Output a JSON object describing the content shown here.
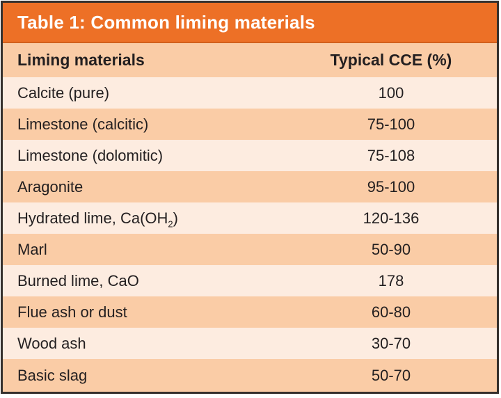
{
  "table": {
    "title": "Table 1: Common liming materials",
    "columns": {
      "material": "Liming materials",
      "cce": "Typical CCE (%)"
    },
    "rows": [
      {
        "material": "Calcite (pure)",
        "cce": "100"
      },
      {
        "material": "Limestone (calcitic)",
        "cce": "75-100"
      },
      {
        "material": "Limestone (dolomitic)",
        "cce": "75-108"
      },
      {
        "material": "Aragonite",
        "cce": "95-100"
      },
      {
        "material": "Hydrated lime, Ca(OH₂)",
        "cce": "120-136"
      },
      {
        "material": "Marl",
        "cce": "50-90"
      },
      {
        "material": "Burned lime, CaO",
        "cce": "178"
      },
      {
        "material": "Flue ash or dust",
        "cce": "60-80"
      },
      {
        "material": "Wood ash",
        "cce": "30-70"
      },
      {
        "material": "Basic slag",
        "cce": "50-70"
      }
    ],
    "colors": {
      "title_bar": "#ed7026",
      "title_text": "#ffffff",
      "row_dark": "#facca6",
      "row_light": "#fdece0",
      "text": "#231f20",
      "outer_border": "#35302d"
    }
  }
}
